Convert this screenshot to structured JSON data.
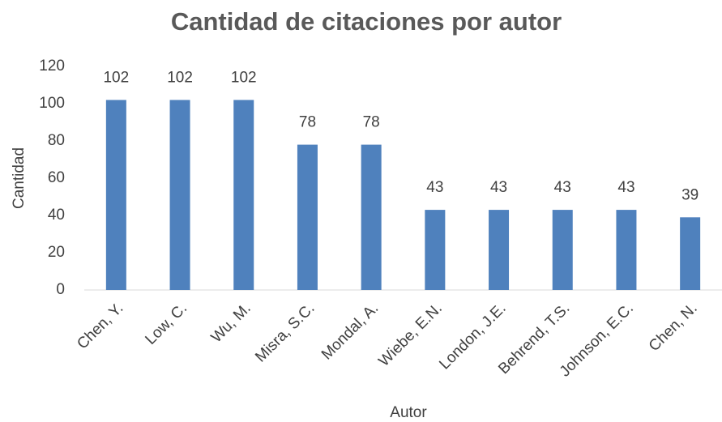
{
  "chart_data": {
    "type": "bar",
    "title": "Cantidad de citaciones por autor",
    "x_label": "Autor",
    "y_label": "Cantidad",
    "categories": [
      "Chen, Y.",
      "Low, C.",
      "Wu, M.",
      "Misra, S.C.",
      "Mondal, A.",
      "Wiebe, E.N.",
      "London, J.E.",
      "Behrend, T.S.",
      "Johnson, E.C.",
      "Chen, N."
    ],
    "values": [
      102,
      102,
      102,
      78,
      78,
      43,
      43,
      43,
      43,
      39
    ],
    "color": "#4f81bd",
    "ylim": [
      0,
      120
    ],
    "yticks": [
      0,
      20,
      40,
      60,
      80,
      100,
      120
    ],
    "grid": false
  }
}
